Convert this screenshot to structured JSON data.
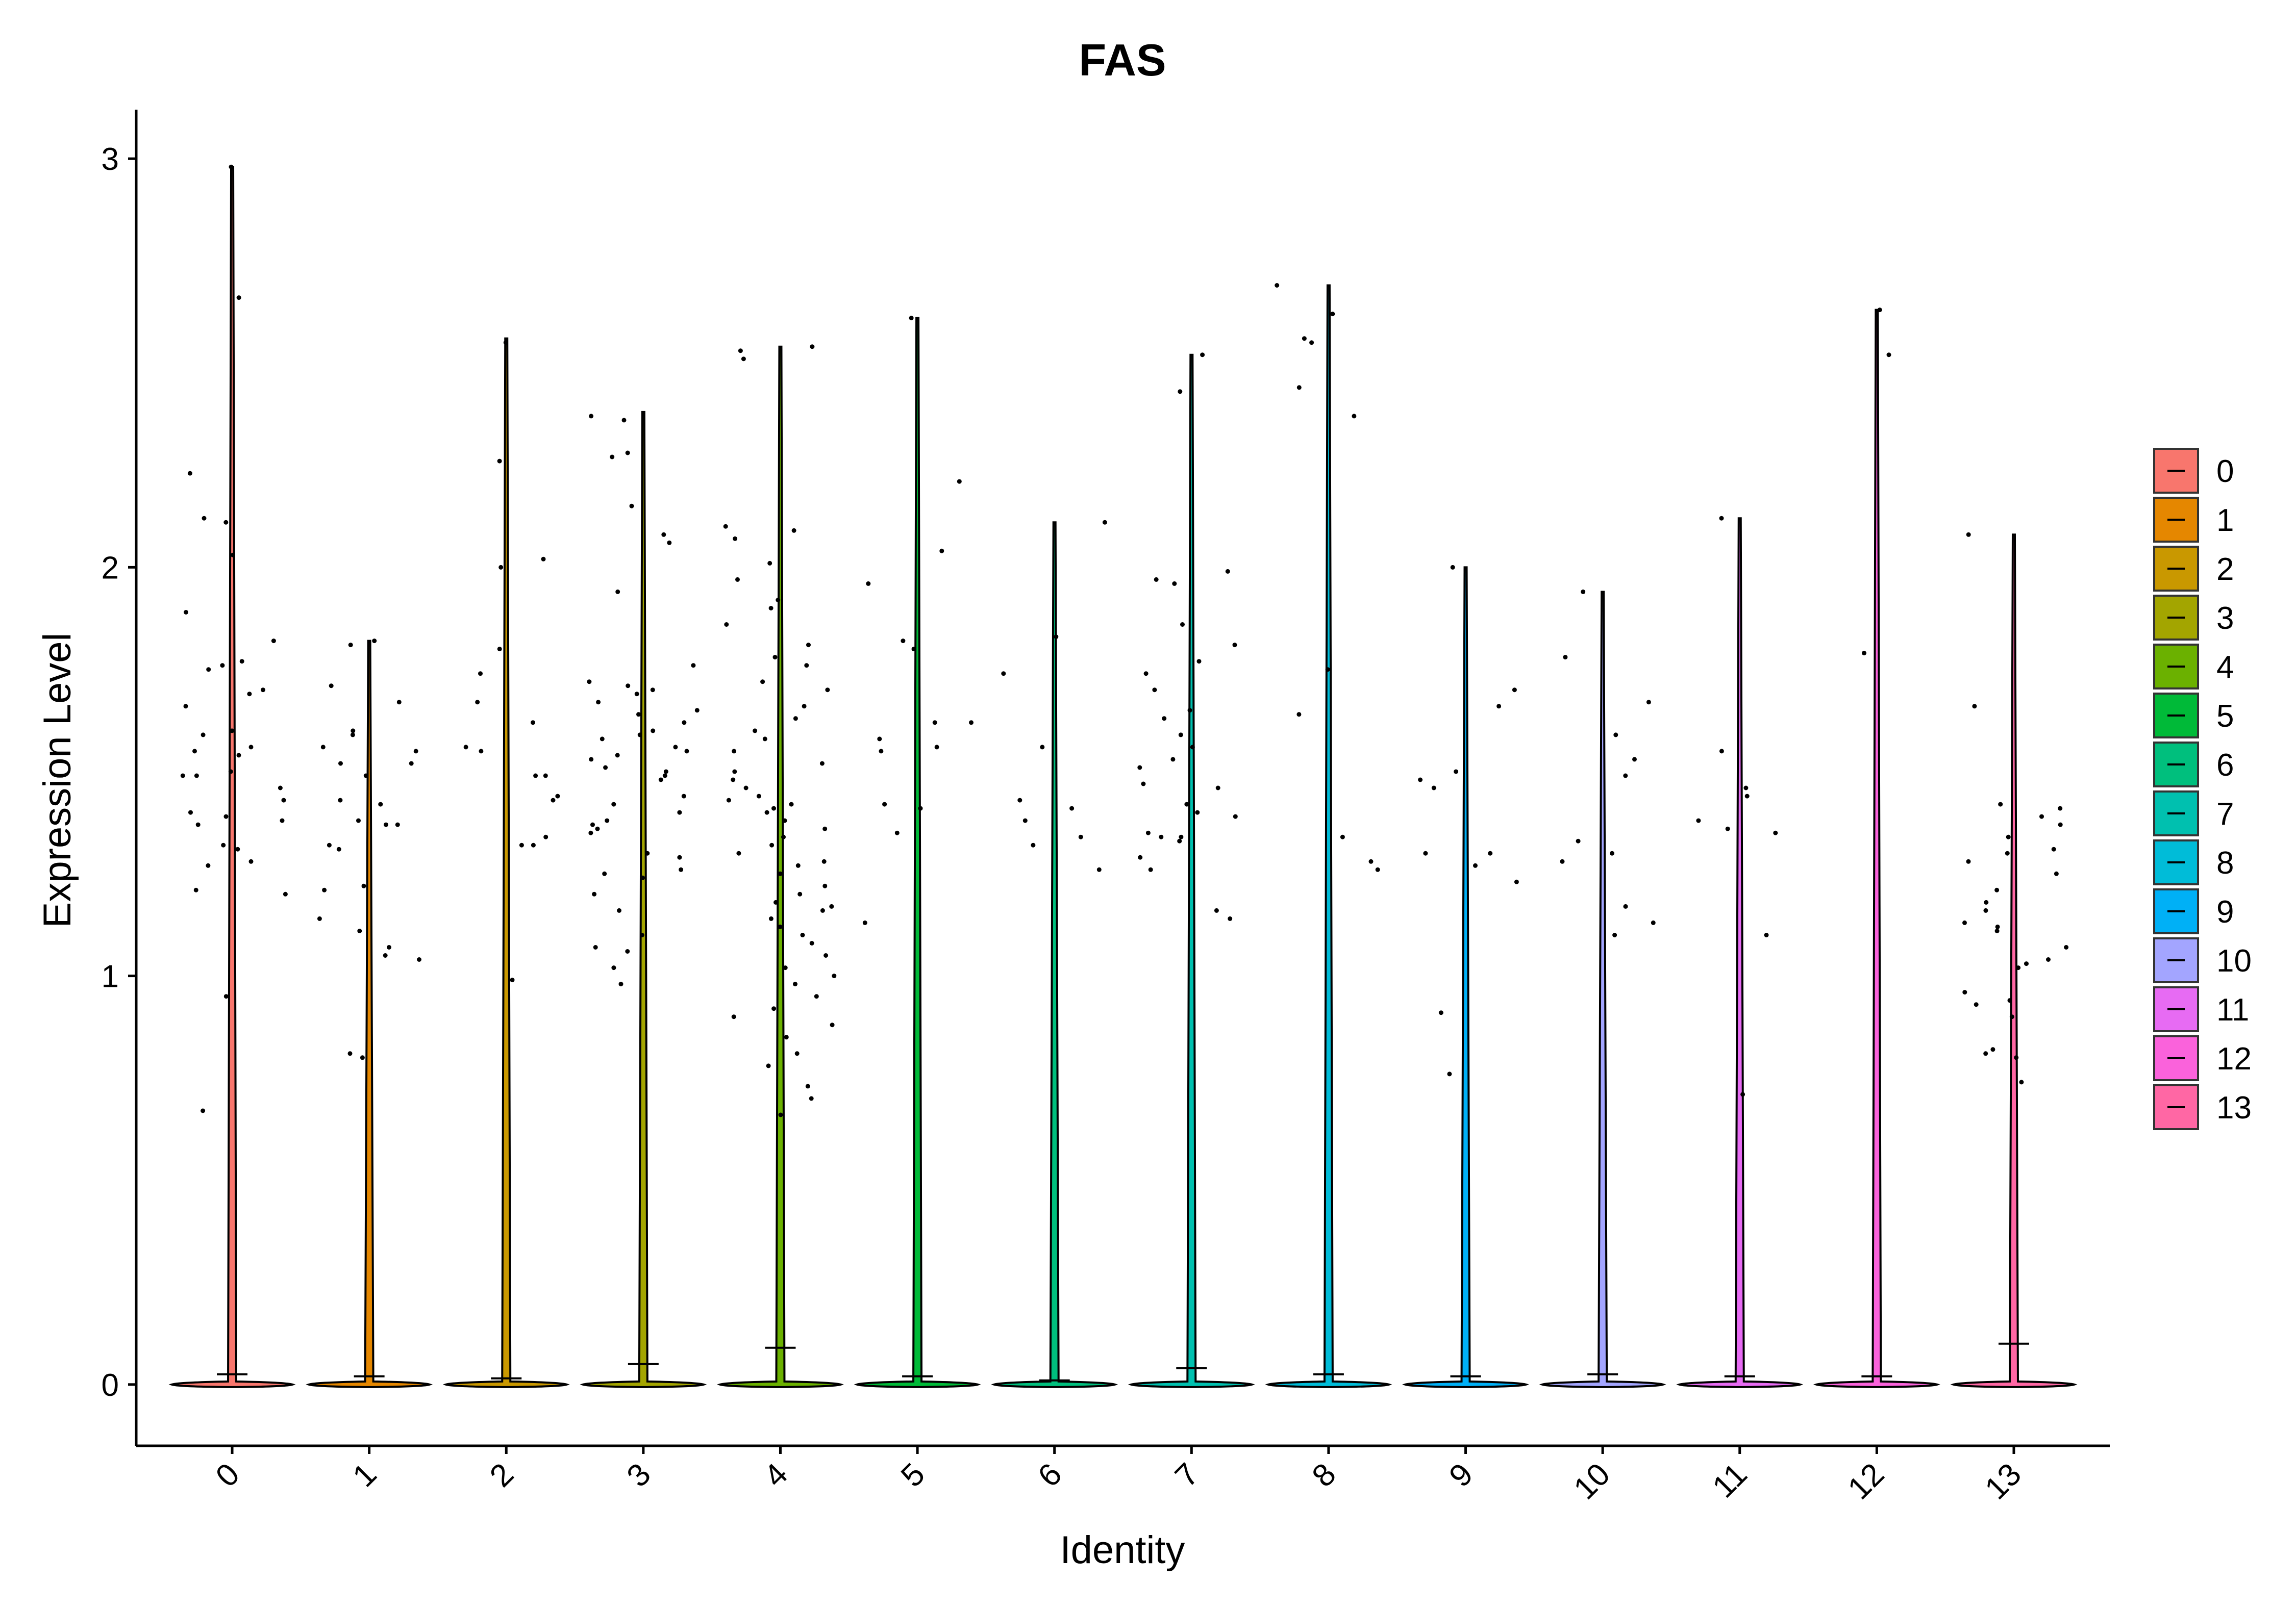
{
  "chart_data": {
    "type": "violin",
    "title": "FAS",
    "xlabel": "Identity",
    "ylabel": "Expression Level",
    "ylim": [
      -0.15,
      3.12
    ],
    "yticks": [
      0,
      1,
      2,
      3
    ],
    "categories": [
      "0",
      "1",
      "2",
      "3",
      "4",
      "5",
      "6",
      "7",
      "8",
      "9",
      "10",
      "11",
      "12",
      "13"
    ],
    "legend_position": "right",
    "colors": [
      "#F8766D",
      "#E58700",
      "#C99800",
      "#A3A500",
      "#6BB100",
      "#00BA38",
      "#00BF7D",
      "#00C0AF",
      "#00BCD8",
      "#00B0F6",
      "#A3A5FF",
      "#E76BF3",
      "#FA62DB",
      "#FF67A4"
    ],
    "violin_max": [
      2.98,
      1.82,
      2.56,
      2.38,
      2.54,
      2.61,
      2.11,
      2.52,
      2.69,
      2.0,
      1.94,
      2.12,
      2.63,
      2.08
    ],
    "median_tick": [
      0.025,
      0.02,
      0.015,
      0.05,
      0.09,
      0.02,
      0.01,
      0.04,
      0.025,
      0.02,
      0.025,
      0.02,
      0.02,
      0.1
    ],
    "points": [
      {
        "cluster": "0",
        "values": [
          2.98,
          2.66,
          2.23,
          2.12,
          2.11,
          2.03,
          1.89,
          1.82,
          1.77,
          1.76,
          1.75,
          1.7,
          1.69,
          1.66,
          1.6,
          1.59,
          1.56,
          1.55,
          1.54,
          1.5,
          1.49,
          1.49,
          1.46,
          1.43,
          1.4,
          1.39,
          1.38,
          1.37,
          1.32,
          1.31,
          1.28,
          1.27,
          1.21,
          1.2,
          0.95,
          0.67
        ]
      },
      {
        "cluster": "1",
        "values": [
          1.82,
          1.81,
          1.71,
          1.67,
          1.6,
          1.59,
          1.56,
          1.55,
          1.52,
          1.52,
          1.49,
          1.43,
          1.42,
          1.38,
          1.37,
          1.37,
          1.32,
          1.31,
          1.22,
          1.21,
          1.14,
          1.11,
          1.07,
          1.05,
          1.04,
          0.81,
          0.8
        ]
      },
      {
        "cluster": "2",
        "values": [
          2.55,
          2.26,
          2.02,
          2.0,
          1.8,
          1.74,
          1.67,
          1.62,
          1.56,
          1.55,
          1.49,
          1.49,
          1.44,
          1.43,
          1.34,
          1.32,
          1.32,
          0.99
        ]
      },
      {
        "cluster": "3",
        "values": [
          2.37,
          2.36,
          2.28,
          2.27,
          2.15,
          2.08,
          2.06,
          1.94,
          1.76,
          1.72,
          1.71,
          1.7,
          1.69,
          1.67,
          1.65,
          1.64,
          1.62,
          1.6,
          1.59,
          1.58,
          1.56,
          1.55,
          1.54,
          1.53,
          1.51,
          1.5,
          1.49,
          1.48,
          1.44,
          1.42,
          1.4,
          1.38,
          1.37,
          1.36,
          1.35,
          1.3,
          1.29,
          1.26,
          1.25,
          1.24,
          1.2,
          1.16,
          1.1,
          1.07,
          1.06,
          1.02,
          0.98
        ]
      },
      {
        "cluster": "4",
        "values": [
          2.54,
          2.53,
          2.51,
          2.1,
          2.09,
          2.07,
          2.01,
          1.97,
          1.92,
          1.9,
          1.86,
          1.81,
          1.78,
          1.76,
          1.72,
          1.7,
          1.66,
          1.63,
          1.6,
          1.58,
          1.55,
          1.52,
          1.5,
          1.48,
          1.46,
          1.44,
          1.43,
          1.42,
          1.41,
          1.4,
          1.38,
          1.36,
          1.34,
          1.32,
          1.3,
          1.28,
          1.27,
          1.25,
          1.22,
          1.2,
          1.18,
          1.17,
          1.16,
          1.14,
          1.12,
          1.1,
          1.08,
          1.05,
          1.02,
          1.0,
          0.98,
          0.95,
          0.92,
          0.9,
          0.88,
          0.85,
          0.81,
          0.78,
          0.73,
          0.7,
          0.66
        ]
      },
      {
        "cluster": "5",
        "values": [
          2.61,
          2.21,
          2.04,
          1.96,
          1.82,
          1.8,
          1.62,
          1.62,
          1.58,
          1.56,
          1.55,
          1.42,
          1.41,
          1.35,
          1.13
        ]
      },
      {
        "cluster": "6",
        "values": [
          2.11,
          1.83,
          1.74,
          1.56,
          1.43,
          1.41,
          1.38,
          1.34,
          1.32,
          1.26
        ]
      },
      {
        "cluster": "7",
        "values": [
          2.52,
          2.43,
          1.99,
          1.97,
          1.96,
          1.86,
          1.81,
          1.77,
          1.74,
          1.7,
          1.65,
          1.63,
          1.59,
          1.56,
          1.53,
          1.51,
          1.47,
          1.46,
          1.42,
          1.4,
          1.39,
          1.35,
          1.34,
          1.34,
          1.33,
          1.29,
          1.26,
          1.16,
          1.14
        ]
      },
      {
        "cluster": "8",
        "values": [
          2.69,
          2.62,
          2.56,
          2.55,
          2.44,
          2.37,
          1.75,
          1.64,
          1.34,
          1.28,
          1.26
        ]
      },
      {
        "cluster": "9",
        "values": [
          2.0,
          1.7,
          1.66,
          1.5,
          1.48,
          1.46,
          1.3,
          1.3,
          1.27,
          1.23,
          0.91,
          0.76
        ]
      },
      {
        "cluster": "10",
        "values": [
          1.94,
          1.78,
          1.67,
          1.59,
          1.53,
          1.49,
          1.33,
          1.3,
          1.28,
          1.17,
          1.13,
          1.1
        ]
      },
      {
        "cluster": "11",
        "values": [
          2.12,
          1.55,
          1.46,
          1.44,
          1.38,
          1.36,
          1.35,
          1.1,
          0.71
        ]
      },
      {
        "cluster": "12",
        "values": [
          2.63,
          2.52,
          1.79
        ]
      },
      {
        "cluster": "13",
        "values": [
          2.08,
          1.66,
          1.42,
          1.41,
          1.39,
          1.37,
          1.34,
          1.31,
          1.3,
          1.28,
          1.25,
          1.21,
          1.18,
          1.16,
          1.13,
          1.12,
          1.11,
          1.07,
          1.04,
          1.03,
          1.02,
          0.96,
          0.94,
          0.93,
          0.9,
          0.82,
          0.81,
          0.8,
          0.74
        ]
      }
    ]
  }
}
